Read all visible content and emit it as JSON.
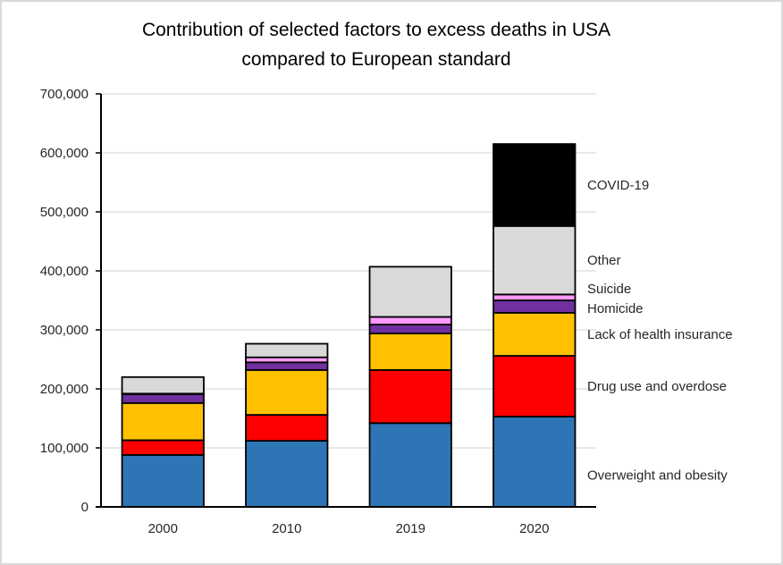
{
  "chart_data": {
    "type": "bar",
    "stacked": true,
    "title": "Contribution of selected factors to excess deaths in USA compared to European standard",
    "title_lines": [
      "Contribution of selected factors to excess deaths in USA",
      "compared to European standard"
    ],
    "xlabel": "",
    "ylabel": "",
    "categories": [
      "2000",
      "2010",
      "2019",
      "2020"
    ],
    "ylim": [
      0,
      700000
    ],
    "yticks": [
      0,
      100000,
      200000,
      300000,
      400000,
      500000,
      600000,
      700000
    ],
    "ytick_labels": [
      "0",
      "100,000",
      "200,000",
      "300,000",
      "400,000",
      "500,000",
      "600,000",
      "700,000"
    ],
    "grid": true,
    "legend_placement": "right (inline labels beside last bar)",
    "series": [
      {
        "name": "Overweight and obesity",
        "color": "#2e75b6",
        "values": [
          88000,
          112000,
          142000,
          153000
        ]
      },
      {
        "name": "Drug use and overdose",
        "color": "#ff0000",
        "values": [
          25000,
          44000,
          90000,
          103000
        ]
      },
      {
        "name": "Lack of health insurance",
        "color": "#ffc000",
        "values": [
          63000,
          76000,
          62000,
          73000
        ]
      },
      {
        "name": "Homicide",
        "color": "#7030a0",
        "values": [
          15000,
          13000,
          15000,
          21000
        ]
      },
      {
        "name": "Suicide",
        "color": "#ff99ff",
        "values": [
          1000,
          8500,
          13000,
          10000
        ]
      },
      {
        "name": "Other",
        "color": "#d9d9d9",
        "values": [
          28000,
          23000,
          85000,
          116000
        ]
      },
      {
        "name": "COVID-19",
        "color": "#000000",
        "values": [
          0,
          0,
          0,
          139000
        ]
      }
    ]
  }
}
